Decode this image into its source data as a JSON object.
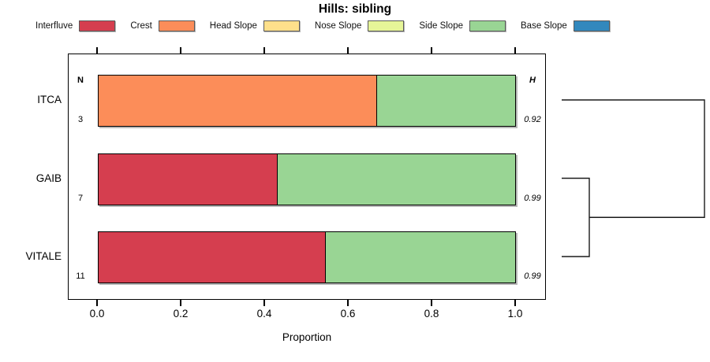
{
  "title": "Hills: sibling",
  "legend": {
    "items": [
      {
        "label": "Interfluve",
        "color": "#D53E4F"
      },
      {
        "label": "Crest",
        "color": "#FC8D59"
      },
      {
        "label": "Head Slope",
        "color": "#FEE08B"
      },
      {
        "label": "Nose Slope",
        "color": "#E6F598"
      },
      {
        "label": "Side Slope",
        "color": "#99D594"
      },
      {
        "label": "Base Slope",
        "color": "#3288BD"
      }
    ]
  },
  "columns": {
    "n_header": "N",
    "h_header": "H"
  },
  "x_axis": {
    "label": "Proportion",
    "tick_values": [
      0,
      0.2,
      0.4,
      0.6,
      0.8,
      1.0
    ],
    "tick_labels": [
      "0.0",
      "0.2",
      "0.4",
      "0.6",
      "0.8",
      "1.0"
    ],
    "range": [
      0,
      1
    ]
  },
  "chart_data": {
    "type": "bar",
    "orientation": "horizontal",
    "stacked": true,
    "title": "Hills: sibling",
    "xlabel": "Proportion",
    "xlim": [
      0,
      1
    ],
    "grid": false,
    "legend_position": "top",
    "categories": [
      "ITCA",
      "GAIB",
      "VITALE"
    ],
    "rows": [
      {
        "category": "ITCA",
        "n": "3",
        "h": "0.92",
        "segments": [
          {
            "name": "Crest",
            "proportion": 0.667,
            "color": "#FC8D59"
          },
          {
            "name": "Side Slope",
            "proportion": 0.333,
            "color": "#99D594"
          }
        ]
      },
      {
        "category": "GAIB",
        "n": "7",
        "h": "0.99",
        "segments": [
          {
            "name": "Interfluve",
            "proportion": 0.429,
            "color": "#D53E4F"
          },
          {
            "name": "Side Slope",
            "proportion": 0.571,
            "color": "#99D594"
          }
        ]
      },
      {
        "category": "VITALE",
        "n": "11",
        "h": "0.99",
        "segments": [
          {
            "name": "Interfluve",
            "proportion": 0.545,
            "color": "#D53E4F"
          },
          {
            "name": "Side Slope",
            "proportion": 0.455,
            "color": "#99D594"
          }
        ]
      }
    ],
    "dendrogram": {
      "first_merge": [
        "GAIB",
        "VITALE"
      ],
      "second_merge": [
        "ITCA",
        "GAIB+VITALE"
      ]
    }
  }
}
